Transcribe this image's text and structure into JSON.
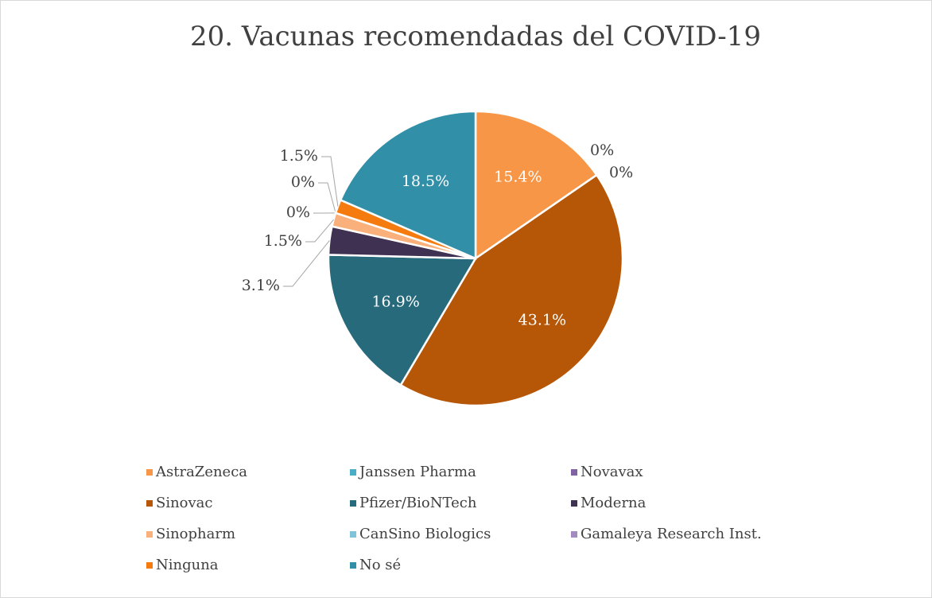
{
  "chart_data": {
    "type": "pie",
    "title": "20. Vacunas recomendadas del COVID-19",
    "categories": [
      "AstraZeneca",
      "Janssen Pharma",
      "Novavax",
      "Sinovac",
      "Pfizer/BioNTech",
      "Moderna",
      "Sinopharm",
      "CanSino Biologics",
      "Gamaleya Research Inst.",
      "Ninguna",
      "No sé"
    ],
    "values": [
      15.4,
      0,
      0,
      43.1,
      16.9,
      3.1,
      1.5,
      0,
      0,
      1.5,
      18.5
    ],
    "value_labels": [
      "15.4%",
      "0%",
      "0%",
      "43.1%",
      "16.9%",
      "3.1%",
      "1.5%",
      "0%",
      "0%",
      "1.5%",
      "18.5%"
    ],
    "colors": [
      "#f79646",
      "#4bacc6",
      "#8064a2",
      "#b65708",
      "#276a7c",
      "#3f3151",
      "#f9b07a",
      "#7fc4d8",
      "#a08cc0",
      "#f57b0f",
      "#318fa8"
    ],
    "legend": "bottom"
  }
}
